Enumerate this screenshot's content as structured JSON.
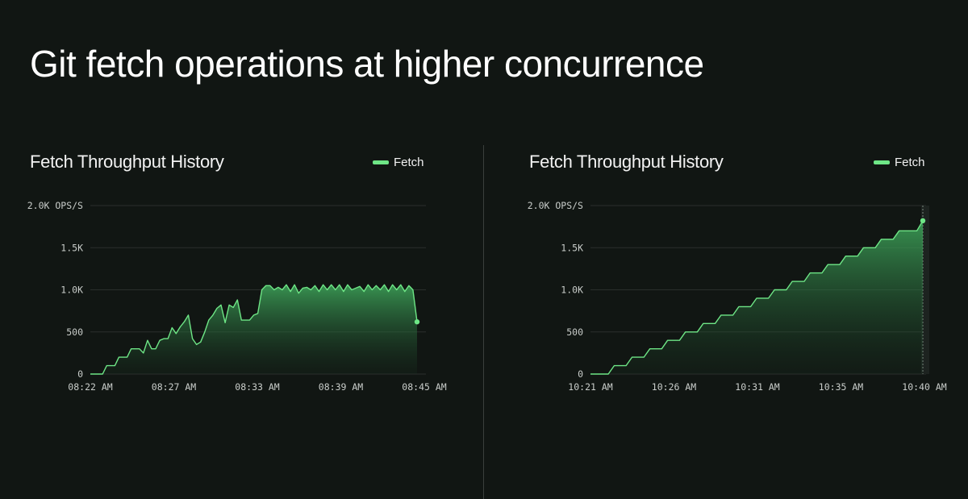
{
  "page": {
    "title": "Git fetch operations at higher concurrence"
  },
  "colors": {
    "background": "#111613",
    "series": "#6ee686",
    "grid": "#2a2f2c"
  },
  "chart_data": [
    {
      "type": "area",
      "title": "Fetch Throughput History",
      "legend": [
        "Fetch"
      ],
      "legend_position": "top-right",
      "grid": true,
      "y_unit_label": "OPS/S",
      "ylim": [
        0,
        2000
      ],
      "y_ticks": [
        {
          "value": 0,
          "label": "0"
        },
        {
          "value": 500,
          "label": "500"
        },
        {
          "value": 1000,
          "label": "1.0K"
        },
        {
          "value": 1500,
          "label": "1.5K"
        },
        {
          "value": 2000,
          "label": "2.0K OPS/S"
        }
      ],
      "x_ticks": [
        "08:22 AM",
        "08:27 AM",
        "08:33 AM",
        "08:39 AM",
        "08:45 AM"
      ],
      "series": [
        {
          "name": "Fetch",
          "values": [
            0,
            0,
            0,
            0,
            100,
            100,
            100,
            200,
            200,
            200,
            300,
            300,
            300,
            250,
            400,
            300,
            300,
            400,
            420,
            420,
            550,
            480,
            560,
            620,
            700,
            420,
            350,
            380,
            500,
            640,
            700,
            780,
            820,
            610,
            820,
            790,
            880,
            640,
            640,
            640,
            700,
            720,
            1000,
            1050,
            1050,
            1000,
            1030,
            1000,
            1060,
            980,
            1060,
            960,
            1020,
            1030,
            1000,
            1050,
            980,
            1060,
            1000,
            1060,
            1000,
            1060,
            980,
            1060,
            1000,
            1020,
            1040,
            980,
            1060,
            1000,
            1050,
            1000,
            1060,
            980,
            1060,
            1000,
            1060,
            980,
            1050,
            1000,
            620
          ],
          "color": "#6ee686"
        }
      ]
    },
    {
      "type": "area",
      "title": "Fetch Throughput History",
      "legend": [
        "Fetch"
      ],
      "legend_position": "top-right",
      "grid": true,
      "y_unit_label": "OPS/S",
      "ylim": [
        0,
        2000
      ],
      "y_ticks": [
        {
          "value": 0,
          "label": "0"
        },
        {
          "value": 500,
          "label": "500"
        },
        {
          "value": 1000,
          "label": "1.0K"
        },
        {
          "value": 1500,
          "label": "1.5K"
        },
        {
          "value": 2000,
          "label": "2.0K OPS/S"
        }
      ],
      "x_ticks": [
        "10:21 AM",
        "10:26 AM",
        "10:31 AM",
        "10:35 AM",
        "10:40 AM"
      ],
      "series": [
        {
          "name": "Fetch",
          "values": [
            0,
            0,
            0,
            0,
            100,
            100,
            100,
            200,
            200,
            200,
            300,
            300,
            300,
            400,
            400,
            400,
            500,
            500,
            500,
            600,
            600,
            600,
            700,
            700,
            700,
            800,
            800,
            800,
            900,
            900,
            900,
            1000,
            1000,
            1000,
            1100,
            1100,
            1100,
            1200,
            1200,
            1200,
            1300,
            1300,
            1300,
            1400,
            1400,
            1400,
            1500,
            1500,
            1500,
            1600,
            1600,
            1600,
            1700,
            1700,
            1700,
            1700,
            1820
          ],
          "color": "#6ee686"
        }
      ]
    }
  ]
}
